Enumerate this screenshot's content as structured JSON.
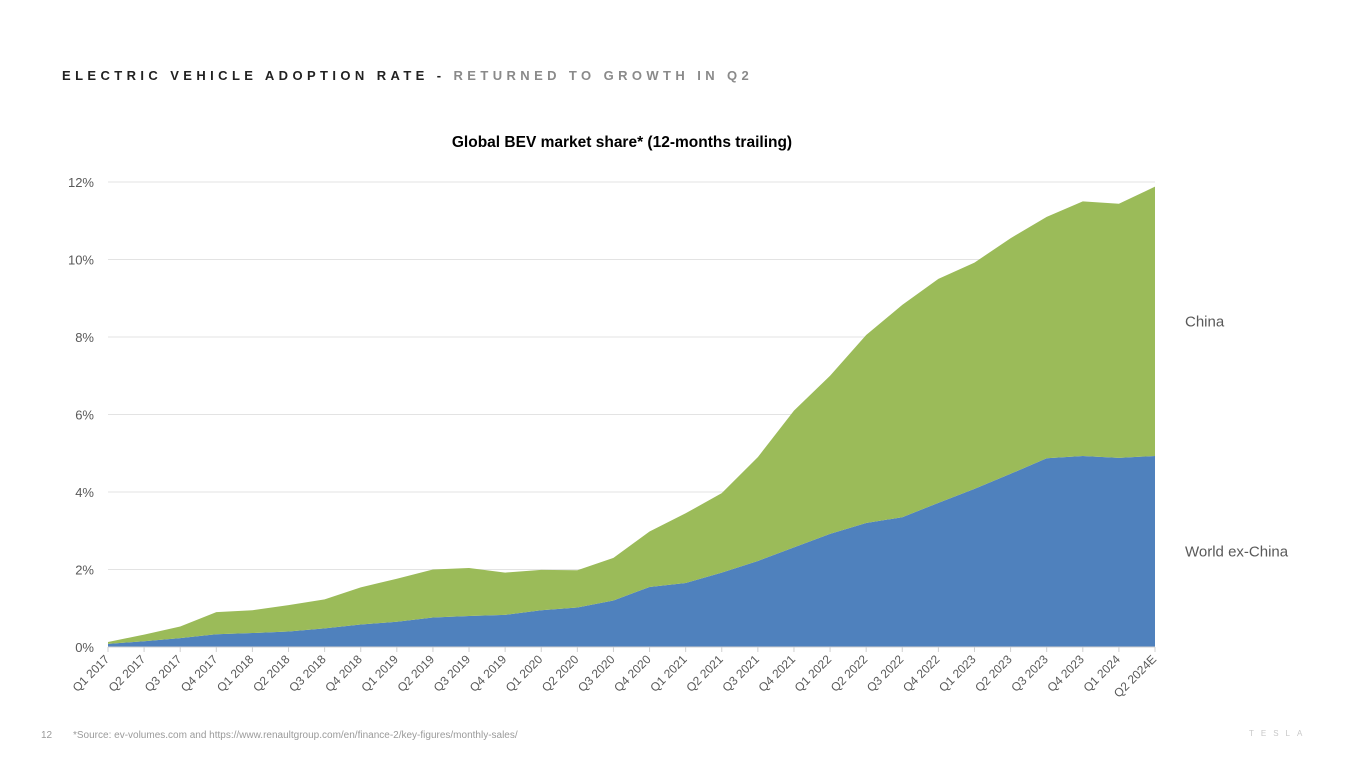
{
  "header": {
    "title": "ELECTRIC VEHICLE ADOPTION RATE",
    "separator": "-",
    "subtitle": "RETURNED TO GROWTH IN Q2"
  },
  "chart_data": {
    "type": "area",
    "stacked": true,
    "title": "Global BEV market share* (12-months trailing)",
    "xlabel": "",
    "ylabel": "",
    "ylim": [
      0,
      12
    ],
    "yticks": [
      0,
      2,
      4,
      6,
      8,
      10,
      12
    ],
    "ytick_labels": [
      "0%",
      "2%",
      "4%",
      "6%",
      "8%",
      "10%",
      "12%"
    ],
    "grid": true,
    "legend": "right, inline labels",
    "categories": [
      "Q1 2017",
      "Q2 2017",
      "Q3 2017",
      "Q4 2017",
      "Q1 2018",
      "Q2 2018",
      "Q3 2018",
      "Q4 2018",
      "Q1 2019",
      "Q2 2019",
      "Q3 2019",
      "Q4 2019",
      "Q1 2020",
      "Q2 2020",
      "Q3 2020",
      "Q4 2020",
      "Q1 2021",
      "Q2 2021",
      "Q3 2021",
      "Q4 2021",
      "Q1 2022",
      "Q2 2022",
      "Q3 2022",
      "Q4 2022",
      "Q1 2023",
      "Q2 2023",
      "Q3 2023",
      "Q4 2023",
      "Q1 2024",
      "Q2 2024E"
    ],
    "series": [
      {
        "name": "World ex-China",
        "color": "#4f81bd",
        "values": [
          0.08,
          0.15,
          0.23,
          0.33,
          0.36,
          0.4,
          0.48,
          0.58,
          0.65,
          0.76,
          0.8,
          0.83,
          0.95,
          1.02,
          1.2,
          1.55,
          1.65,
          1.92,
          2.22,
          2.57,
          2.92,
          3.2,
          3.35,
          3.72,
          4.08,
          4.47,
          4.87,
          4.93,
          4.88,
          4.93
        ]
      },
      {
        "name": "China",
        "color": "#9bbb59",
        "values": [
          0.05,
          0.17,
          0.3,
          0.57,
          0.59,
          0.68,
          0.75,
          0.96,
          1.11,
          1.24,
          1.24,
          1.09,
          1.04,
          0.96,
          1.1,
          1.43,
          1.8,
          2.05,
          2.68,
          3.53,
          4.08,
          4.85,
          5.48,
          5.78,
          5.84,
          6.08,
          6.23,
          6.57,
          6.56,
          6.95
        ]
      }
    ]
  },
  "footer": {
    "page_number": "12",
    "source": "*Source: ev-volumes.com and https://www.renaultgroup.com/en/finance-2/key-figures/monthly-sales/",
    "logo_text": "TESLA"
  }
}
